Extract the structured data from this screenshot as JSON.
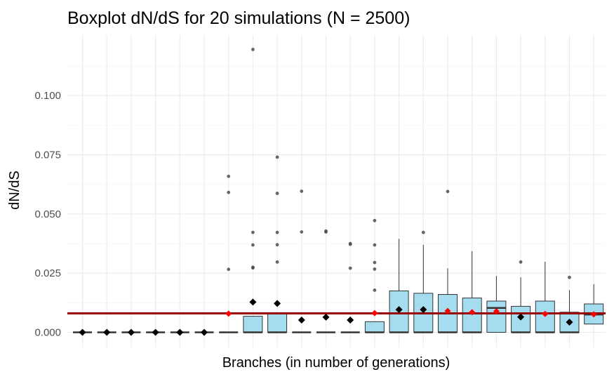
{
  "chart_data": {
    "type": "box",
    "title": "Boxplot dN/dS for 20 simulations (N = 2500)",
    "xlabel": "Branches (in number of generations)",
    "ylabel": "dN/dS",
    "ylim": [
      -0.0075,
      0.125
    ],
    "yticks": [
      0.0,
      0.025,
      0.05,
      0.075,
      0.1
    ],
    "ytick_labels": [
      "0.000",
      "0.025",
      "0.050",
      "0.075",
      "0.100"
    ],
    "grid": true,
    "reference_line": {
      "value": 0.008,
      "color": "#990000"
    },
    "colors": {
      "box_fill": "#a6dcef",
      "box_stroke": "#333333",
      "outlier": "#4d4d4d",
      "mean_default": "#000000",
      "mean_highlight": "#ff0000"
    },
    "boxes": [
      {
        "q1": 0,
        "median": 0,
        "q3": 0,
        "whisker_low": 0,
        "whisker_high": 0,
        "mean": 0.0,
        "mean_color": "black",
        "outliers": []
      },
      {
        "q1": 0,
        "median": 0,
        "q3": 0,
        "whisker_low": 0,
        "whisker_high": 0,
        "mean": 0.0,
        "mean_color": "black",
        "outliers": []
      },
      {
        "q1": 0,
        "median": 0,
        "q3": 0,
        "whisker_low": 0,
        "whisker_high": 0,
        "mean": 0.0,
        "mean_color": "black",
        "outliers": []
      },
      {
        "q1": 0,
        "median": 0,
        "q3": 0,
        "whisker_low": 0,
        "whisker_high": 0,
        "mean": 0.0,
        "mean_color": "black",
        "outliers": []
      },
      {
        "q1": 0,
        "median": 0,
        "q3": 0,
        "whisker_low": 0,
        "whisker_high": 0,
        "mean": 0.0,
        "mean_color": "black",
        "outliers": []
      },
      {
        "q1": 0,
        "median": 0,
        "q3": 0,
        "whisker_low": 0,
        "whisker_high": 0,
        "mean": 0.0,
        "mean_color": "black",
        "outliers": []
      },
      {
        "q1": 0,
        "median": 0,
        "q3": 0,
        "whisker_low": 0,
        "whisker_high": 0,
        "mean": 0.0079,
        "mean_color": "red",
        "outliers": [
          0.0266,
          0.0591,
          0.0659
        ]
      },
      {
        "q1": 0,
        "median": 0,
        "q3": 0.0068,
        "whisker_low": 0,
        "whisker_high": 0.0068,
        "mean": 0.0128,
        "mean_color": "black",
        "outliers": [
          0.0272,
          0.0275,
          0.0369,
          0.0422,
          0.1195
        ]
      },
      {
        "q1": 0,
        "median": 0,
        "q3": 0.0078,
        "whisker_low": 0,
        "whisker_high": 0.0078,
        "mean": 0.0122,
        "mean_color": "black",
        "outliers": [
          0.0297,
          0.037,
          0.0422,
          0.0587,
          0.074
        ]
      },
      {
        "q1": 0,
        "median": 0,
        "q3": 0,
        "whisker_low": 0,
        "whisker_high": 0,
        "mean": 0.0052,
        "mean_color": "black",
        "outliers": [
          0.0424,
          0.0596
        ]
      },
      {
        "q1": 0,
        "median": 0,
        "q3": 0,
        "whisker_low": 0,
        "whisker_high": 0,
        "mean": 0.0064,
        "mean_color": "black",
        "outliers": [
          0.0424,
          0.0428
        ]
      },
      {
        "q1": 0,
        "median": 0,
        "q3": 0,
        "whisker_low": 0,
        "whisker_high": 0,
        "mean": 0.0052,
        "mean_color": "black",
        "outliers": [
          0.0271,
          0.0372,
          0.0375
        ]
      },
      {
        "q1": 0,
        "median": 0,
        "q3": 0.0045,
        "whisker_low": 0,
        "whisker_high": 0.0045,
        "mean": 0.0081,
        "mean_color": "red",
        "outliers": [
          0.0178,
          0.0267,
          0.0295,
          0.0369,
          0.0472
        ]
      },
      {
        "q1": 0,
        "median": 0,
        "q3": 0.0175,
        "whisker_low": 0,
        "whisker_high": 0.0395,
        "mean": 0.0096,
        "mean_color": "black",
        "outliers": []
      },
      {
        "q1": 0,
        "median": 0,
        "q3": 0.0165,
        "whisker_low": 0,
        "whisker_high": 0.037,
        "mean": 0.0096,
        "mean_color": "black",
        "outliers": [
          0.0422
        ]
      },
      {
        "q1": 0,
        "median": 0,
        "q3": 0.016,
        "whisker_low": 0,
        "whisker_high": 0.027,
        "mean": 0.009,
        "mean_color": "red",
        "outliers": [
          0.0595
        ]
      },
      {
        "q1": 0,
        "median": 0,
        "q3": 0.0145,
        "whisker_low": 0,
        "whisker_high": 0.0343,
        "mean": 0.0085,
        "mean_color": "red",
        "outliers": []
      },
      {
        "q1": 0,
        "median": 0.0103,
        "q3": 0.0132,
        "whisker_low": 0,
        "whisker_high": 0.0238,
        "mean": 0.0089,
        "mean_color": "red",
        "outliers": []
      },
      {
        "q1": 0,
        "median": 0,
        "q3": 0.011,
        "whisker_low": 0,
        "whisker_high": 0.0232,
        "mean": 0.0065,
        "mean_color": "black",
        "outliers": [
          0.0297
        ]
      },
      {
        "q1": 0,
        "median": 0,
        "q3": 0.0132,
        "whisker_low": 0,
        "whisker_high": 0.0298,
        "mean": 0.0078,
        "mean_color": "red",
        "outliers": []
      },
      {
        "q1": 0,
        "median": 0,
        "q3": 0.0085,
        "whisker_low": 0,
        "whisker_high": 0.0178,
        "mean": 0.0043,
        "mean_color": "black",
        "outliers": [
          0.0232
        ]
      },
      {
        "q1": 0.0035,
        "median": 0.0075,
        "q3": 0.012,
        "whisker_low": 0.0035,
        "whisker_high": 0.0203,
        "mean": 0.0076,
        "mean_color": "red",
        "outliers": []
      }
    ]
  }
}
